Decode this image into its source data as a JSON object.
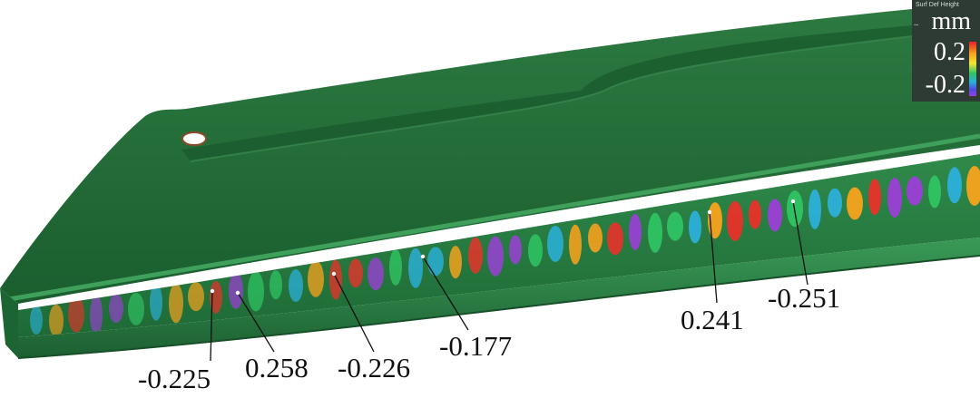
{
  "legend": {
    "title": "Surf Def Height",
    "unit": "mm",
    "max": "0.2",
    "min": "-0.2",
    "colors": [
      "#e8202a",
      "#f7a21d",
      "#f2e830",
      "#2fc463",
      "#2bb0d9",
      "#4f4be0",
      "#9b3fd6"
    ]
  },
  "surface_color": "#1f6b35",
  "callouts": [
    {
      "value": "-0.225",
      "color": "#8a3ee0"
    },
    {
      "value": "0.258",
      "color": "#e8322a"
    },
    {
      "value": "-0.226",
      "color": "#8a3ee0"
    },
    {
      "value": "-0.177",
      "color": "#6b4ee6"
    },
    {
      "value": "0.241",
      "color": "#e8322a"
    },
    {
      "value": "-0.251",
      "color": "#8a3ee0"
    }
  ]
}
